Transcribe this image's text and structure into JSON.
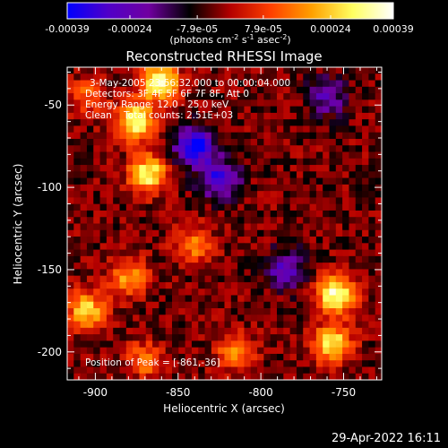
{
  "colorbar": {
    "tick_labels": [
      "-0.00039",
      "-0.00024",
      "-7.9e-05",
      "7.9e-05",
      "0.00024",
      "0.00039"
    ],
    "tick_values": [
      -0.00039,
      -0.00024,
      -7.9e-05,
      7.9e-05,
      0.00024,
      0.00039
    ],
    "unit_prefix": "(photons cm",
    "unit_exp1": "-2",
    "unit_mid": " s",
    "unit_exp2": "-1",
    "unit_mid2": " asec",
    "unit_exp3": "-2",
    "unit_suffix": ")",
    "colors": [
      "#0000ff",
      "#5000c8",
      "#7000a0",
      "#000000",
      "#b40000",
      "#ff4000",
      "#ffa000",
      "#ffff60",
      "#ffffff"
    ]
  },
  "chart_data": {
    "type": "heatmap",
    "title": "Reconstructed RHESSI Image",
    "xlabel": "Heliocentric X (arcsec)",
    "ylabel": "Heliocentric Y (arcsec)",
    "xlim": [
      -917,
      -727
    ],
    "ylim": [
      -217,
      -27
    ],
    "x_ticks": [
      -900,
      -850,
      -800,
      -750
    ],
    "x_tick_labels": [
      "-900",
      "-850",
      "-800",
      "-750"
    ],
    "y_ticks": [
      -50,
      -100,
      -150,
      -200
    ],
    "y_tick_labels": [
      "-50",
      "-100",
      "-150",
      "-200"
    ],
    "hot_spots": [
      {
        "x": -876,
        "y": -60,
        "value": 0.00039
      },
      {
        "x": -868,
        "y": -92,
        "value": 0.00035
      },
      {
        "x": -861,
        "y": -36,
        "value": 0.00039
      },
      {
        "x": -905,
        "y": -175,
        "value": 0.0003
      },
      {
        "x": -880,
        "y": -155,
        "value": 0.00022
      },
      {
        "x": -755,
        "y": -165,
        "value": 0.00039
      },
      {
        "x": -757,
        "y": -195,
        "value": 0.00034
      },
      {
        "x": -840,
        "y": -135,
        "value": 0.0002
      },
      {
        "x": -815,
        "y": -200,
        "value": 0.00022
      },
      {
        "x": -870,
        "y": -205,
        "value": 0.00018
      },
      {
        "x": -905,
        "y": -45,
        "value": 0.00015
      }
    ],
    "cold_spots": [
      {
        "x": -840,
        "y": -75,
        "value": -0.00039
      },
      {
        "x": -825,
        "y": -95,
        "value": -0.0003
      },
      {
        "x": -785,
        "y": -150,
        "value": -0.00024
      },
      {
        "x": -760,
        "y": -45,
        "value": -0.0002
      }
    ]
  },
  "annotations": {
    "line1": "3-May-2005 23:56:32.000 to 00:00:04.000",
    "line2": "Detectors: 3F 4F 5F 6F 7F 8F, Att 0",
    "line3": "Energy Range: 12.0 - 25.0 keV",
    "line4": "Clean    Total counts: 2.51E+03",
    "peak": "Position of Peak = [-861,-36]"
  },
  "footer": {
    "timestamp": "29-Apr-2022 16:11"
  }
}
